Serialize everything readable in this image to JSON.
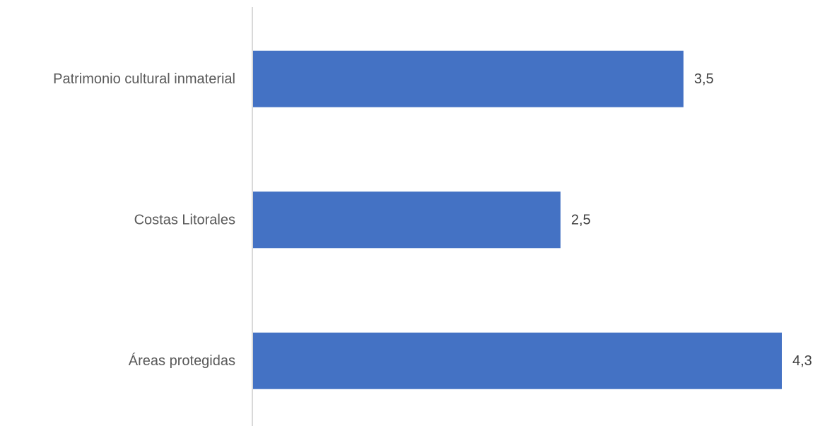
{
  "chart_data": {
    "type": "bar",
    "orientation": "horizontal",
    "categories": [
      "Patrimonio cultural inmaterial",
      "Costas Litorales",
      "Áreas protegidas"
    ],
    "values": [
      3.5,
      2.5,
      4.3
    ],
    "value_labels": [
      "3,5",
      "2,5",
      "4,3"
    ],
    "title": "",
    "xlabel": "",
    "ylabel": "",
    "xlim": [
      0,
      4.3
    ],
    "grid": false,
    "legend": "none",
    "bar_color": "#4472C4",
    "axis_color": "#D9D9D9"
  }
}
